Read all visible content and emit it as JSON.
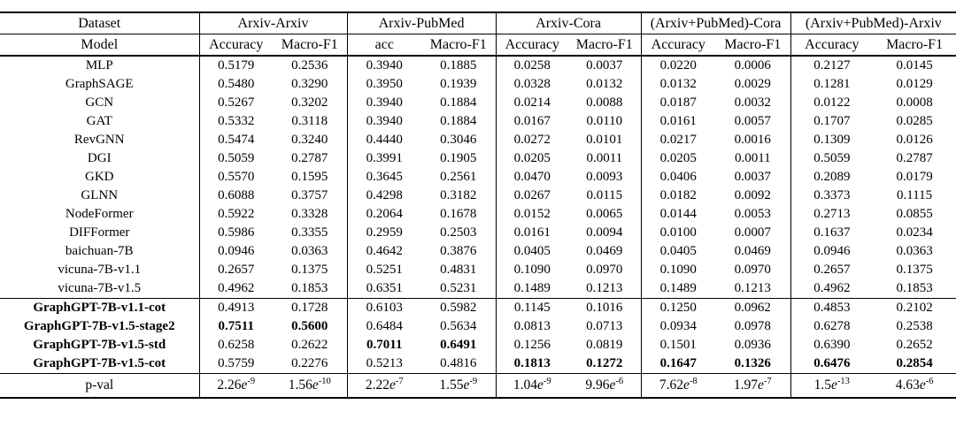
{
  "table": {
    "header": {
      "dataset_label": "Dataset",
      "model_label": "Model",
      "groups": [
        {
          "label": "Arxiv-Arxiv",
          "sub": [
            "Accuracy",
            "Macro-F1"
          ]
        },
        {
          "label": "Arxiv-PubMed",
          "sub": [
            "acc",
            "Macro-F1"
          ]
        },
        {
          "label": "Arxiv-Cora",
          "sub": [
            "Accuracy",
            "Macro-F1"
          ]
        },
        {
          "label": "(Arxiv+PubMed)-Cora",
          "sub": [
            "Accuracy",
            "Macro-F1"
          ]
        },
        {
          "label": "(Arxiv+PubMed)-Arxiv",
          "sub": [
            "Accuracy",
            "Macro-F1"
          ]
        }
      ]
    },
    "rows": [
      {
        "model": "MLP",
        "bold_name": false,
        "section_start": false,
        "bold_cells": [],
        "values": [
          "0.5179",
          "0.2536",
          "0.3940",
          "0.1885",
          "0.0258",
          "0.0037",
          "0.0220",
          "0.0006",
          "0.2127",
          "0.0145"
        ]
      },
      {
        "model": "GraphSAGE",
        "bold_name": false,
        "section_start": false,
        "bold_cells": [],
        "values": [
          "0.5480",
          "0.3290",
          "0.3950",
          "0.1939",
          "0.0328",
          "0.0132",
          "0.0132",
          "0.0029",
          "0.1281",
          "0.0129"
        ]
      },
      {
        "model": "GCN",
        "bold_name": false,
        "section_start": false,
        "bold_cells": [],
        "values": [
          "0.5267",
          "0.3202",
          "0.3940",
          "0.1884",
          "0.0214",
          "0.0088",
          "0.0187",
          "0.0032",
          "0.0122",
          "0.0008"
        ]
      },
      {
        "model": "GAT",
        "bold_name": false,
        "section_start": false,
        "bold_cells": [],
        "values": [
          "0.5332",
          "0.3118",
          "0.3940",
          "0.1884",
          "0.0167",
          "0.0110",
          "0.0161",
          "0.0057",
          "0.1707",
          "0.0285"
        ]
      },
      {
        "model": "RevGNN",
        "bold_name": false,
        "section_start": false,
        "bold_cells": [],
        "values": [
          "0.5474",
          "0.3240",
          "0.4440",
          "0.3046",
          "0.0272",
          "0.0101",
          "0.0217",
          "0.0016",
          "0.1309",
          "0.0126"
        ]
      },
      {
        "model": "DGI",
        "bold_name": false,
        "section_start": false,
        "bold_cells": [],
        "values": [
          "0.5059",
          "0.2787",
          "0.3991",
          "0.1905",
          "0.0205",
          "0.0011",
          "0.0205",
          "0.0011",
          "0.5059",
          "0.2787"
        ]
      },
      {
        "model": "GKD",
        "bold_name": false,
        "section_start": false,
        "bold_cells": [],
        "values": [
          "0.5570",
          "0.1595",
          "0.3645",
          "0.2561",
          "0.0470",
          "0.0093",
          "0.0406",
          "0.0037",
          "0.2089",
          "0.0179"
        ]
      },
      {
        "model": "GLNN",
        "bold_name": false,
        "section_start": false,
        "bold_cells": [],
        "values": [
          "0.6088",
          "0.3757",
          "0.4298",
          "0.3182",
          "0.0267",
          "0.0115",
          "0.0182",
          "0.0092",
          "0.3373",
          "0.1115"
        ]
      },
      {
        "model": "NodeFormer",
        "bold_name": false,
        "section_start": false,
        "bold_cells": [],
        "values": [
          "0.5922",
          "0.3328",
          "0.2064",
          "0.1678",
          "0.0152",
          "0.0065",
          "0.0144",
          "0.0053",
          "0.2713",
          "0.0855"
        ]
      },
      {
        "model": "DIFFormer",
        "bold_name": false,
        "section_start": false,
        "bold_cells": [],
        "values": [
          "0.5986",
          "0.3355",
          "0.2959",
          "0.2503",
          "0.0161",
          "0.0094",
          "0.0100",
          "0.0007",
          "0.1637",
          "0.0234"
        ]
      },
      {
        "model": "baichuan-7B",
        "bold_name": false,
        "section_start": false,
        "bold_cells": [],
        "values": [
          "0.0946",
          "0.0363",
          "0.4642",
          "0.3876",
          "0.0405",
          "0.0469",
          "0.0405",
          "0.0469",
          "0.0946",
          "0.0363"
        ]
      },
      {
        "model": "vicuna-7B-v1.1",
        "bold_name": false,
        "section_start": false,
        "bold_cells": [],
        "values": [
          "0.2657",
          "0.1375",
          "0.5251",
          "0.4831",
          "0.1090",
          "0.0970",
          "0.1090",
          "0.0970",
          "0.2657",
          "0.1375"
        ]
      },
      {
        "model": "vicuna-7B-v1.5",
        "bold_name": false,
        "section_start": false,
        "bold_cells": [],
        "values": [
          "0.4962",
          "0.1853",
          "0.6351",
          "0.5231",
          "0.1489",
          "0.1213",
          "0.1489",
          "0.1213",
          "0.4962",
          "0.1853"
        ]
      },
      {
        "model": "GraphGPT-7B-v1.1-cot",
        "bold_name": true,
        "section_start": true,
        "bold_cells": [],
        "values": [
          "0.4913",
          "0.1728",
          "0.6103",
          "0.5982",
          "0.1145",
          "0.1016",
          "0.1250",
          "0.0962",
          "0.4853",
          "0.2102"
        ]
      },
      {
        "model": "GraphGPT-7B-v1.5-stage2",
        "bold_name": true,
        "section_start": false,
        "bold_cells": [
          0,
          1
        ],
        "values": [
          "0.7511",
          "0.5600",
          "0.6484",
          "0.5634",
          "0.0813",
          "0.0713",
          "0.0934",
          "0.0978",
          "0.6278",
          "0.2538"
        ]
      },
      {
        "model": "GraphGPT-7B-v1.5-std",
        "bold_name": true,
        "section_start": false,
        "bold_cells": [
          2,
          3
        ],
        "values": [
          "0.6258",
          "0.2622",
          "0.7011",
          "0.6491",
          "0.1256",
          "0.0819",
          "0.1501",
          "0.0936",
          "0.6390",
          "0.2652"
        ]
      },
      {
        "model": "GraphGPT-7B-v1.5-cot",
        "bold_name": true,
        "section_start": false,
        "bold_cells": [
          4,
          5,
          6,
          7,
          8,
          9
        ],
        "values": [
          "0.5759",
          "0.2276",
          "0.5213",
          "0.4816",
          "0.1813",
          "0.1272",
          "0.1647",
          "0.1326",
          "0.6476",
          "0.2854"
        ]
      }
    ],
    "pval": {
      "label": "p-val",
      "e_symbol": "e",
      "values": [
        {
          "coef": "2.26",
          "exp": "-9"
        },
        {
          "coef": "1.56",
          "exp": "-10"
        },
        {
          "coef": "2.22",
          "exp": "-7"
        },
        {
          "coef": "1.55",
          "exp": "-9"
        },
        {
          "coef": "1.04",
          "exp": "-9"
        },
        {
          "coef": "9.96",
          "exp": "-6"
        },
        {
          "coef": "7.62",
          "exp": "-8"
        },
        {
          "coef": "1.97",
          "exp": "-7"
        },
        {
          "coef": "1.5",
          "exp": "-13"
        },
        {
          "coef": "4.63",
          "exp": "-6"
        }
      ]
    },
    "layout": {
      "dataset_col_width": 225,
      "value_col_widths": [
        83,
        84,
        84,
        84,
        82,
        82,
        84,
        85,
        93,
        94
      ]
    }
  }
}
